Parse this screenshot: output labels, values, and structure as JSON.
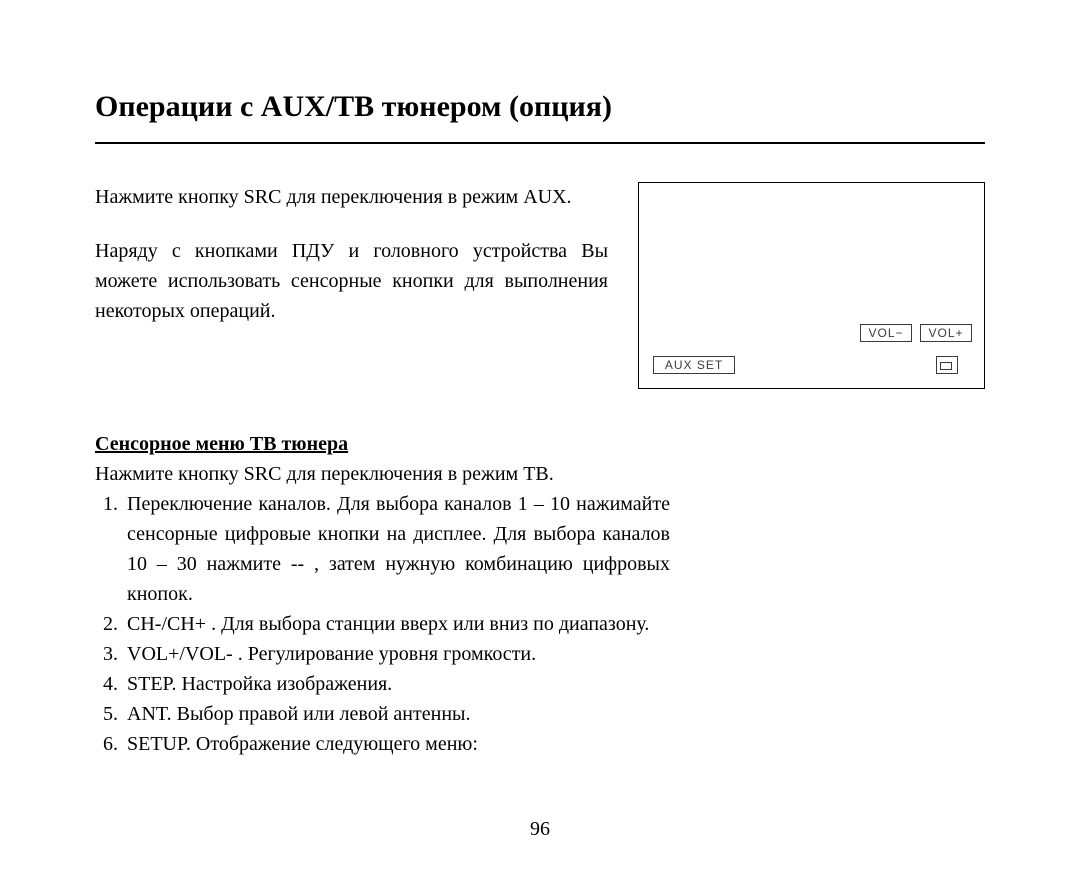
{
  "title": "Операции с AUX/ТВ тюнером (опция)",
  "intro": {
    "p1": "Нажмите кнопку SRC для переключения в режим AUX.",
    "p2": "Наряду с кнопками ПДУ и головного устройства Вы можете использовать сенсорные кнопки для выполнения некоторых операций."
  },
  "screen": {
    "aux_set": "AUX SET",
    "vol_minus": "VOL−",
    "vol_plus": "VOL+"
  },
  "section2": {
    "heading": "Сенсорное меню ТВ тюнера",
    "lead": "Нажмите кнопку SRC для переключения в режим ТВ.",
    "items": [
      "Переключение каналов. Для выбора каналов 1 – 10 нажимайте сенсорные цифровые кнопки на дисплее. Для выбора каналов 10 – 30 нажмите -- , затем нужную комбинацию цифровых кнопок.",
      "CH-/CH+ . Для выбора станции вверх или вниз по диапазону.",
      "VOL+/VOL- . Регулирование уровня громкости.",
      "STEP. Настройка изображения.",
      "ANT. Выбор правой или левой антенны.",
      "SETUP. Отображение следующего меню:"
    ]
  },
  "page_number": "96"
}
